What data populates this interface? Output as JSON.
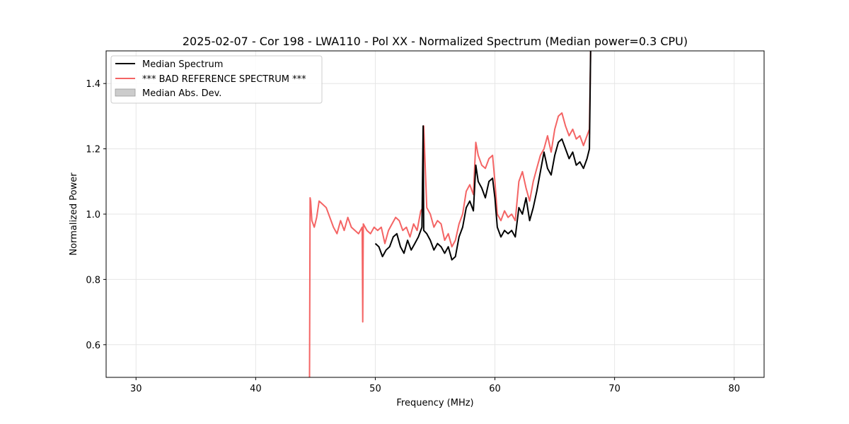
{
  "chart_data": {
    "type": "line",
    "title": "2025-02-07 - Cor 198 - LWA110 - Pol XX - Normalized Spectrum (Median power=0.3 CPU)",
    "xlabel": "Frequency (MHz)",
    "ylabel": "Normalized Power",
    "xlim": [
      27.5,
      82.5
    ],
    "ylim": [
      0.5,
      1.5
    ],
    "xticks": [
      30,
      40,
      50,
      60,
      70,
      80
    ],
    "yticks": [
      0.6,
      0.8,
      1.0,
      1.2,
      1.4
    ],
    "xtick_labels": [
      "30",
      "40",
      "50",
      "60",
      "70",
      "80"
    ],
    "ytick_labels": [
      "0.6",
      "0.8",
      "1.0",
      "1.2",
      "1.4"
    ],
    "grid": true,
    "legend_position": "top-left",
    "legend": [
      {
        "label": "Median Spectrum",
        "kind": "line",
        "color": "#000000"
      },
      {
        "label": "*** BAD REFERENCE SPECTRUM ***",
        "kind": "line",
        "color": "#f46464"
      },
      {
        "label": "Median Abs. Dev.",
        "kind": "patch",
        "color": "#cccccc"
      }
    ],
    "series": [
      {
        "name": "Median Spectrum",
        "color": "#000000",
        "x": [
          50.0,
          50.3,
          50.6,
          50.9,
          51.2,
          51.5,
          51.8,
          52.1,
          52.4,
          52.7,
          53.0,
          53.3,
          53.6,
          53.9,
          54.0,
          54.05,
          54.3,
          54.6,
          54.9,
          55.2,
          55.5,
          55.8,
          56.1,
          56.4,
          56.7,
          57.0,
          57.3,
          57.6,
          57.9,
          58.2,
          58.4,
          58.6,
          58.9,
          59.2,
          59.5,
          59.8,
          60.0,
          60.2,
          60.5,
          60.8,
          61.1,
          61.4,
          61.7,
          62.0,
          62.3,
          62.6,
          62.9,
          63.2,
          63.5,
          63.8,
          64.1,
          64.4,
          64.7,
          65.0,
          65.3,
          65.6,
          65.9,
          66.2,
          66.5,
          66.8,
          67.1,
          67.4,
          67.7,
          67.9,
          68.0
        ],
        "y": [
          0.91,
          0.9,
          0.87,
          0.89,
          0.9,
          0.93,
          0.94,
          0.9,
          0.88,
          0.92,
          0.89,
          0.91,
          0.93,
          0.96,
          1.27,
          0.95,
          0.94,
          0.92,
          0.89,
          0.91,
          0.9,
          0.88,
          0.9,
          0.86,
          0.87,
          0.93,
          0.96,
          1.02,
          1.04,
          1.01,
          1.15,
          1.1,
          1.08,
          1.05,
          1.1,
          1.11,
          1.05,
          0.96,
          0.93,
          0.95,
          0.94,
          0.95,
          0.93,
          1.02,
          1.0,
          1.05,
          0.98,
          1.02,
          1.07,
          1.13,
          1.19,
          1.14,
          1.12,
          1.18,
          1.22,
          1.23,
          1.2,
          1.17,
          1.19,
          1.15,
          1.16,
          1.14,
          1.17,
          1.2,
          1.5
        ]
      },
      {
        "name": "*** BAD REFERENCE SPECTRUM ***",
        "color": "#f46464",
        "x": [
          44.5,
          44.55,
          44.6,
          44.7,
          44.9,
          45.1,
          45.3,
          45.6,
          45.9,
          46.2,
          46.5,
          46.8,
          47.1,
          47.4,
          47.7,
          48.0,
          48.3,
          48.6,
          48.9,
          48.95,
          49.0,
          49.3,
          49.6,
          49.9,
          50.2,
          50.5,
          50.8,
          51.1,
          51.4,
          51.7,
          52.0,
          52.3,
          52.6,
          52.9,
          53.2,
          53.5,
          53.8,
          54.0,
          54.05,
          54.3,
          54.6,
          54.9,
          55.2,
          55.5,
          55.8,
          56.1,
          56.4,
          56.7,
          57.0,
          57.3,
          57.6,
          57.9,
          58.2,
          58.4,
          58.6,
          58.9,
          59.2,
          59.5,
          59.8,
          60.0,
          60.2,
          60.5,
          60.8,
          61.1,
          61.4,
          61.7,
          62.0,
          62.3,
          62.6,
          62.9,
          63.2,
          63.5,
          63.8,
          64.1,
          64.4,
          64.7,
          65.0,
          65.3,
          65.6,
          65.9,
          66.2,
          66.5,
          66.8,
          67.1,
          67.4,
          67.7,
          67.9,
          68.0
        ],
        "y": [
          0.5,
          1.05,
          1.04,
          0.98,
          0.96,
          0.99,
          1.04,
          1.03,
          1.02,
          0.99,
          0.96,
          0.94,
          0.98,
          0.95,
          0.99,
          0.96,
          0.95,
          0.94,
          0.96,
          0.67,
          0.97,
          0.95,
          0.94,
          0.96,
          0.95,
          0.96,
          0.91,
          0.95,
          0.97,
          0.99,
          0.98,
          0.95,
          0.96,
          0.93,
          0.97,
          0.95,
          1.01,
          1.02,
          1.27,
          1.02,
          1.0,
          0.96,
          0.98,
          0.97,
          0.92,
          0.94,
          0.9,
          0.92,
          0.97,
          1.0,
          1.07,
          1.09,
          1.06,
          1.22,
          1.18,
          1.15,
          1.14,
          1.17,
          1.18,
          1.1,
          1.0,
          0.98,
          1.01,
          0.99,
          1.0,
          0.98,
          1.1,
          1.13,
          1.08,
          1.04,
          1.1,
          1.14,
          1.18,
          1.2,
          1.24,
          1.19,
          1.26,
          1.3,
          1.31,
          1.27,
          1.24,
          1.26,
          1.23,
          1.24,
          1.21,
          1.24,
          1.26,
          1.5
        ]
      }
    ]
  }
}
